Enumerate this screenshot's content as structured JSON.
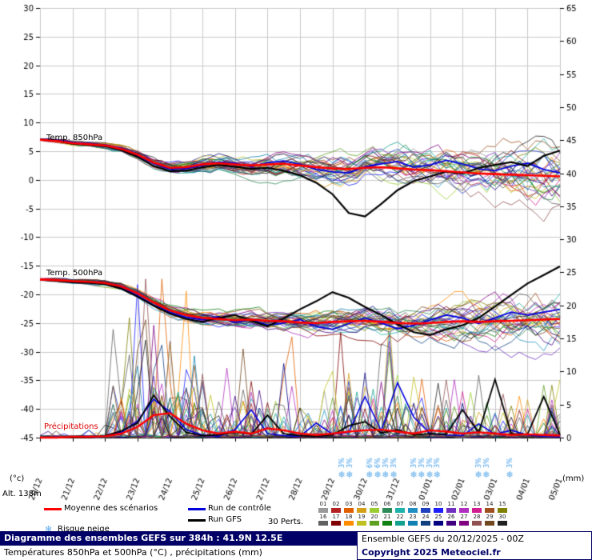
{
  "chart_data": {
    "type": "line",
    "title": "Diagramme des ensembles GEFS sur 384h : 41.9N 12.5E",
    "subtitle": "Températures 850hPa et 500hPa (°C) , précipitations (mm)",
    "x_dates": [
      "20/12",
      "21/12",
      "22/12",
      "23/12",
      "24/12",
      "25/12",
      "26/12",
      "27/12",
      "28/12",
      "29/12",
      "30/12",
      "31/12",
      "01/01",
      "02/01",
      "03/01",
      "04/01",
      "05/01"
    ],
    "time_step_hours": 12,
    "temp_axis": {
      "min": -45,
      "max": 30,
      "tick": 5,
      "unit": "(°c)"
    },
    "precip_axis": {
      "min": 0,
      "max": 65,
      "tick": 5,
      "unit": "(mm)"
    },
    "series_850": {
      "label": "Temp. 850hPa",
      "mean": [
        7.0,
        6.8,
        6.4,
        6.2,
        6.0,
        5.4,
        4.4,
        3.0,
        2.1,
        2.2,
        2.7,
        2.9,
        2.7,
        2.5,
        2.7,
        2.8,
        2.5,
        2.2,
        2.0,
        1.9,
        2.1,
        2.2,
        2.0,
        1.8,
        1.7,
        1.5,
        1.3,
        1.1,
        1.0,
        0.9,
        0.8,
        0.7,
        0.6
      ],
      "control": [
        7.0,
        6.9,
        6.5,
        6.3,
        6.1,
        5.5,
        4.2,
        2.8,
        1.9,
        2.0,
        2.5,
        3.1,
        2.9,
        2.3,
        3.0,
        3.3,
        2.7,
        1.8,
        1.4,
        1.2,
        2.3,
        2.8,
        3.2,
        2.2,
        2.6,
        3.4,
        2.8,
        1.9,
        1.6,
        2.4,
        2.9,
        1.8,
        1.2
      ],
      "gfs": [
        7.0,
        6.8,
        6.3,
        6.1,
        5.9,
        5.2,
        4.0,
        2.4,
        1.5,
        1.6,
        2.2,
        2.6,
        2.3,
        1.9,
        2.1,
        1.6,
        0.8,
        -0.5,
        -2.5,
        -5.8,
        -6.4,
        -4.2,
        -1.8,
        -0.2,
        0.6,
        1.4,
        1.1,
        2.1,
        2.6,
        3.1,
        2.4,
        4.2,
        5.1
      ]
    },
    "series_500": {
      "label": "Temp. 500hPa",
      "mean": [
        -17.4,
        -17.5,
        -17.7,
        -17.8,
        -18.0,
        -18.6,
        -19.8,
        -21.4,
        -22.8,
        -23.6,
        -24.1,
        -24.3,
        -24.5,
        -24.4,
        -24.6,
        -24.7,
        -24.9,
        -25.0,
        -24.8,
        -24.7,
        -24.6,
        -24.8,
        -25.0,
        -25.1,
        -25.0,
        -24.8,
        -24.7,
        -24.8,
        -24.7,
        -24.6,
        -24.5,
        -24.4,
        -24.3
      ],
      "control": [
        -17.4,
        -17.5,
        -17.8,
        -17.9,
        -18.1,
        -18.8,
        -20.2,
        -21.9,
        -23.2,
        -24.0,
        -24.4,
        -23.9,
        -24.9,
        -24.4,
        -25.4,
        -25.0,
        -24.4,
        -25.6,
        -26.1,
        -25.1,
        -24.1,
        -25.0,
        -26.0,
        -25.4,
        -24.5,
        -23.6,
        -24.1,
        -25.1,
        -24.1,
        -23.1,
        -23.6,
        -23.1,
        -22.6
      ],
      "gfs": [
        -17.4,
        -17.6,
        -17.9,
        -18.0,
        -18.2,
        -19.0,
        -20.4,
        -22.0,
        -23.4,
        -24.3,
        -24.8,
        -24.1,
        -23.6,
        -24.6,
        -25.6,
        -24.2,
        -22.6,
        -21.2,
        -19.6,
        -20.6,
        -22.2,
        -23.6,
        -25.2,
        -26.6,
        -27.1,
        -26.1,
        -25.4,
        -24.1,
        -22.1,
        -20.1,
        -18.1,
        -16.6,
        -15.1
      ]
    },
    "precip": {
      "label": "Précipitations",
      "mean": [
        0.0,
        0.0,
        0.1,
        0.1,
        0.2,
        0.6,
        1.6,
        3.4,
        3.7,
        2.1,
        1.1,
        0.6,
        0.9,
        0.6,
        1.4,
        1.1,
        0.6,
        0.4,
        0.6,
        0.9,
        1.1,
        1.2,
        0.9,
        0.6,
        1.1,
        0.9,
        0.6,
        0.8,
        0.6,
        0.4,
        0.5,
        0.4,
        0.3
      ],
      "control": [
        0,
        0,
        0,
        0,
        0.2,
        0.8,
        2.5,
        5.8,
        3.9,
        1.2,
        0.4,
        0.2,
        1.2,
        4.2,
        0.6,
        0.3,
        0.2,
        2.2,
        0.5,
        0.8,
        6.2,
        1.0,
        8.3,
        3.1,
        0.6,
        0.4,
        0.3,
        2.1,
        0.5,
        1.1,
        0.4,
        0.2,
        0.1
      ],
      "gfs": [
        0,
        0,
        0,
        0,
        0.3,
        1.0,
        2.2,
        6.4,
        3.2,
        0.8,
        0.3,
        0.4,
        0.8,
        0.5,
        3.4,
        0.6,
        0.3,
        0.2,
        0.4,
        1.8,
        2.4,
        0.7,
        1.2,
        0.4,
        0.6,
        0.5,
        4.2,
        0.8,
        8.8,
        0.6,
        0.5,
        6.2,
        0.4
      ]
    },
    "ensemble_members": 30,
    "member_colors": [
      "#999999",
      "#b22222",
      "#e06000",
      "#d4a017",
      "#9acd32",
      "#2e8b57",
      "#20b2aa",
      "#2090c0",
      "#2040c0",
      "#2020ff",
      "#7030c0",
      "#b030c0",
      "#d02090",
      "#a05020",
      "#808000",
      "#606060",
      "#800000",
      "#ff8c00",
      "#c0c020",
      "#60a020",
      "#108010",
      "#10a090",
      "#1080b0",
      "#104080",
      "#000080",
      "#400080",
      "#800080",
      "#905050",
      "#704820",
      "#202020"
    ],
    "snow_risk": [
      {
        "day": 9.28,
        "percent": "3%"
      },
      {
        "day": 9.52,
        "percent": "3%"
      },
      {
        "day": 10.14,
        "percent": "6%"
      },
      {
        "day": 10.39,
        "percent": "6%"
      },
      {
        "day": 10.63,
        "percent": "3%"
      },
      {
        "day": 10.88,
        "percent": "3%"
      },
      {
        "day": 11.5,
        "percent": "3%"
      },
      {
        "day": 11.74,
        "percent": "3%"
      },
      {
        "day": 11.99,
        "percent": "3%"
      },
      {
        "day": 12.22,
        "percent": "3%"
      },
      {
        "day": 13.49,
        "percent": "3%"
      },
      {
        "day": 13.73,
        "percent": "3%"
      },
      {
        "day": 14.45,
        "percent": "3%"
      }
    ],
    "colors": {
      "mean": "#ff0000",
      "control": "#0000dd",
      "gfs": "#000000",
      "grid": "#c9c9c9",
      "snow": "#59a8e8",
      "snow_text": "#3d9be9"
    }
  },
  "labels": {
    "temp850": "Temp. 850hPa",
    "temp500": "Temp. 500hPa",
    "precip": "Précipitations",
    "unit_left": "(°c)",
    "unit_right": "(mm)",
    "altitude": "Alt. 138m"
  },
  "legend": {
    "mean": "Moyenne des scénarios",
    "control": "Run de contrôle",
    "gfs": "Run GFS",
    "perts": "30 Perts.",
    "snow": "Risque neige",
    "snow_icon": "❄",
    "pert_numbers": [
      "01",
      "02",
      "03",
      "04",
      "05",
      "06",
      "07",
      "08",
      "09",
      "10",
      "11",
      "12",
      "13",
      "14",
      "15",
      "16",
      "17",
      "18",
      "19",
      "20",
      "21",
      "22",
      "23",
      "24",
      "25",
      "26",
      "27",
      "28",
      "29",
      "30"
    ]
  },
  "footer": {
    "title": "Diagramme des ensembles GEFS sur 384h : 41.9N 12.5E",
    "subtitle": "Températures 850hPa et 500hPa (°C) , précipitations (mm)",
    "run_info": "Ensemble GEFS du 20/12/2025 - 00Z",
    "copyright": "Copyright 2025 Meteociel.fr"
  }
}
